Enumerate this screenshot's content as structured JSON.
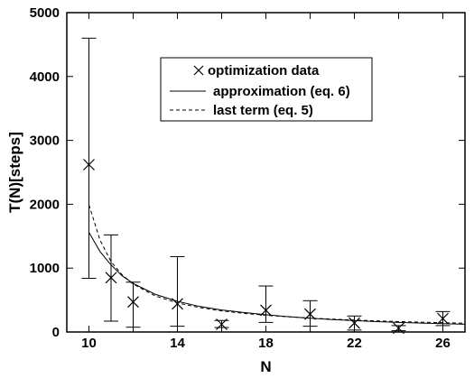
{
  "chart_data": {
    "type": "scatter",
    "title": "",
    "xlabel": "N",
    "ylabel": "T(N)[steps]",
    "xlim": [
      9,
      27
    ],
    "ylim": [
      0,
      5000
    ],
    "x_ticks": [
      10,
      14,
      18,
      22,
      26
    ],
    "x_minor_ticks": [
      12,
      16,
      20,
      24
    ],
    "y_ticks": [
      0,
      1000,
      2000,
      3000,
      4000,
      5000
    ],
    "grid": false,
    "legend_position": "top-center",
    "series": [
      {
        "name": "optimization data",
        "style": "markers-with-errorbars",
        "marker": "x-icon",
        "x": [
          10,
          11,
          12,
          14,
          16,
          18,
          20,
          22,
          24,
          26
        ],
        "y": [
          2620,
          850,
          470,
          440,
          120,
          340,
          280,
          140,
          60,
          210
        ],
        "err_low": [
          840,
          170,
          75,
          90,
          70,
          150,
          90,
          30,
          20,
          100
        ],
        "err_high": [
          4600,
          1520,
          780,
          1180,
          180,
          720,
          490,
          250,
          100,
          320
        ]
      },
      {
        "name": "approximation (eq. 6)",
        "style": "solid-line",
        "x": [
          10,
          10.5,
          11,
          11.5,
          12,
          13,
          14,
          15,
          16,
          17,
          18,
          19,
          20,
          21,
          22,
          23,
          24,
          25,
          26,
          27
        ],
        "y": [
          1560,
          1260,
          1050,
          880,
          760,
          590,
          480,
          400,
          345,
          305,
          270,
          240,
          215,
          195,
          178,
          163,
          150,
          139,
          130,
          122
        ]
      },
      {
        "name": "last term (eq. 5)",
        "style": "dashed-line",
        "x": [
          10,
          10.5,
          11,
          11.5,
          12,
          13,
          14,
          15,
          16,
          17,
          18,
          19,
          20,
          21,
          22,
          23,
          24,
          25,
          26,
          27
        ],
        "y": [
          1990,
          1440,
          1100,
          895,
          750,
          565,
          455,
          383,
          330,
          292,
          262,
          238,
          218,
          201,
          187,
          174,
          163,
          154,
          146,
          138
        ]
      }
    ]
  }
}
